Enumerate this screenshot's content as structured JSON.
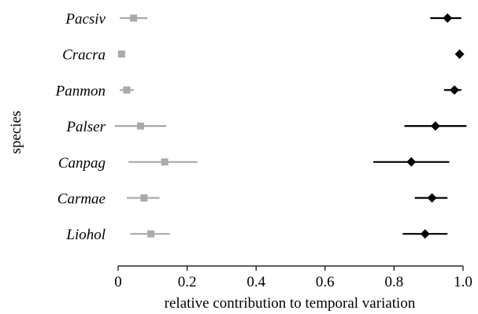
{
  "chart_data": {
    "type": "scatter",
    "title": "",
    "xlabel": "relative contribution to temporal variation",
    "ylabel": "species",
    "xlim": [
      0,
      1.0
    ],
    "xticks": [
      0,
      0.2,
      0.4,
      0.6,
      0.8,
      1.0
    ],
    "xtick_labels": [
      "0",
      "0.2",
      "0.4",
      "0.6",
      "0.8",
      "1.0"
    ],
    "grid": false,
    "legend": "none",
    "categories": [
      "Pacsiv",
      "Cracra",
      "Panmon",
      "Palser",
      "Canpag",
      "Carmae",
      "Liohol"
    ],
    "series": [
      {
        "marker": "square",
        "color": "#aaaaaa",
        "values": [
          0.045,
          0.01,
          0.025,
          0.065,
          0.135,
          0.075,
          0.095
        ],
        "lower": [
          0.005,
          0.01,
          0.005,
          -0.01,
          0.03,
          0.025,
          0.035
        ],
        "upper": [
          0.085,
          0.01,
          0.045,
          0.14,
          0.23,
          0.12,
          0.15
        ]
      },
      {
        "marker": "diamond",
        "color": "#000000",
        "values": [
          0.955,
          0.99,
          0.975,
          0.92,
          0.85,
          0.91,
          0.89
        ],
        "lower": [
          0.905,
          0.99,
          0.945,
          0.83,
          0.74,
          0.86,
          0.825
        ],
        "upper": [
          0.995,
          0.99,
          0.995,
          1.01,
          0.96,
          0.955,
          0.955
        ]
      }
    ]
  }
}
